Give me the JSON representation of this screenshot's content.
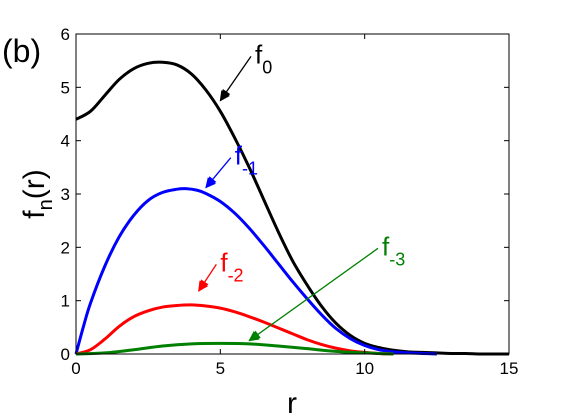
{
  "panel_label": "(b)",
  "chart_data": {
    "type": "line",
    "xlabel": "r",
    "ylabel": {
      "main": "f",
      "sub": "n",
      "tail": "(r)"
    },
    "xlim": [
      0,
      15
    ],
    "ylim": [
      0,
      6
    ],
    "xticks": [
      "0",
      "5",
      "10",
      "15"
    ],
    "yticks": [
      "0",
      "1",
      "2",
      "3",
      "4",
      "5",
      "6"
    ],
    "grid": false,
    "legend": "none",
    "series": [
      {
        "name": "f0",
        "label_main": "f",
        "label_sub": "0",
        "color": "#000000",
        "x": [
          0,
          0.5,
          1,
          1.5,
          2,
          2.5,
          3,
          3.5,
          4,
          4.5,
          5,
          5.5,
          6,
          6.5,
          7,
          7.5,
          8,
          8.5,
          9,
          9.5,
          10,
          10.5,
          11,
          11.5,
          12,
          12.5,
          13,
          13.5,
          14,
          14.5,
          15
        ],
        "y": [
          4.4,
          4.55,
          4.85,
          5.15,
          5.35,
          5.45,
          5.47,
          5.42,
          5.25,
          4.95,
          4.55,
          4.05,
          3.5,
          2.9,
          2.3,
          1.75,
          1.3,
          0.9,
          0.58,
          0.35,
          0.2,
          0.12,
          0.07,
          0.04,
          0.03,
          0.02,
          0.01,
          0.01,
          0.0,
          0.0,
          0.0
        ],
        "annotation": {
          "label_x": 6.2,
          "label_y": 5.45,
          "arrow_x": 5.0,
          "arrow_y": 4.75
        }
      },
      {
        "name": "f-1",
        "label_main": "f",
        "label_sub": "-1",
        "color": "#0000ff",
        "x": [
          0,
          0.25,
          0.5,
          1,
          1.5,
          2,
          2.5,
          3,
          3.5,
          3.8,
          4.2,
          4.5,
          5,
          5.5,
          6,
          6.5,
          7,
          7.5,
          8,
          8.5,
          9,
          9.5,
          10,
          10.5,
          11,
          11.5,
          12,
          12.5
        ],
        "y": [
          0,
          0.5,
          0.95,
          1.65,
          2.2,
          2.6,
          2.88,
          3.03,
          3.09,
          3.1,
          3.07,
          3.01,
          2.86,
          2.64,
          2.36,
          2.04,
          1.7,
          1.36,
          1.04,
          0.74,
          0.48,
          0.29,
          0.16,
          0.08,
          0.04,
          0.02,
          0.01,
          0.0
        ],
        "annotation": {
          "label_x": 5.5,
          "label_y": 3.55,
          "arrow_x": 4.5,
          "arrow_y": 3.12
        }
      },
      {
        "name": "f-2",
        "label_main": "f",
        "label_sub": "-2",
        "color": "#ff0000",
        "x": [
          0,
          0.5,
          1,
          1.5,
          2,
          2.5,
          3,
          3.5,
          4,
          4.5,
          5,
          5.5,
          6,
          6.5,
          7,
          7.5,
          8,
          8.5,
          9,
          9.5,
          10,
          10.5,
          11
        ],
        "y": [
          0,
          0.08,
          0.28,
          0.52,
          0.7,
          0.81,
          0.88,
          0.91,
          0.92,
          0.9,
          0.86,
          0.79,
          0.7,
          0.6,
          0.49,
          0.38,
          0.27,
          0.18,
          0.11,
          0.06,
          0.03,
          0.01,
          0.0
        ],
        "annotation": {
          "label_x": 5.0,
          "label_y": 1.55,
          "arrow_x": 4.25,
          "arrow_y": 1.18
        }
      },
      {
        "name": "f-3",
        "label_main": "f",
        "label_sub": "-3",
        "color": "#008000",
        "x": [
          0,
          1,
          2,
          3,
          4,
          5,
          6,
          7,
          8,
          9,
          10,
          11
        ],
        "y": [
          0,
          0.02,
          0.08,
          0.15,
          0.19,
          0.2,
          0.19,
          0.15,
          0.1,
          0.05,
          0.02,
          0.0
        ],
        "annotation": {
          "label_x": 10.6,
          "label_y": 1.85,
          "arrow_x": 6.0,
          "arrow_y": 0.25
        }
      }
    ]
  }
}
